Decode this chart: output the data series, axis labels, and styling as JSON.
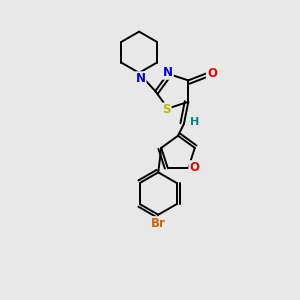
{
  "background_color": "#e8e8e8",
  "bond_color": "#000000",
  "atom_colors": {
    "N": "#0000dd",
    "O": "#ee0000",
    "S": "#bbbb00",
    "Br": "#cc6600",
    "H": "#008888",
    "C": "#000000"
  },
  "figsize": [
    3.0,
    3.0
  ],
  "dpi": 100,
  "lw": 1.4,
  "fontsize": 8.5
}
